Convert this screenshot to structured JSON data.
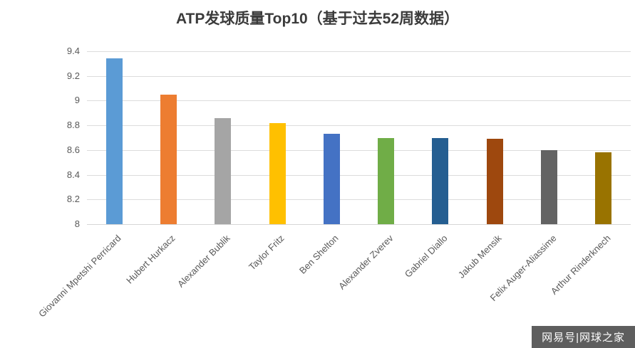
{
  "chart_data": {
    "type": "bar",
    "title": "ATP发球质量Top10（基于过去52周数据）",
    "categories": [
      "Giovanni Mpetshi Perricard",
      "Hubert Hurkacz",
      "Alexander Bublik",
      "Taylor Fritz",
      "Ben Shelton",
      "Alexander Zverev",
      "Gabriel Diallo",
      "Jakub Mensik",
      "Felix Auger-Aliassime",
      "Arthur Rinderknech"
    ],
    "values": [
      9.34,
      9.05,
      8.86,
      8.82,
      8.73,
      8.7,
      8.7,
      8.69,
      8.6,
      8.58
    ],
    "bar_colors": [
      "#5B9BD5",
      "#ED7D31",
      "#A5A5A5",
      "#FFC000",
      "#4472C4",
      "#70AD47",
      "#255E91",
      "#9E480E",
      "#636363",
      "#997300"
    ],
    "xlabel": "",
    "ylabel": "",
    "ylim": [
      8,
      9.4
    ],
    "yticks": [
      8,
      8.2,
      8.4,
      8.6,
      8.8,
      9,
      9.2,
      9.4
    ],
    "grid": true,
    "legend": false,
    "gridline_color": "#DCDCDC",
    "axis_text_color": "#595959"
  },
  "watermark": {
    "text": "网易号|网球之家"
  }
}
